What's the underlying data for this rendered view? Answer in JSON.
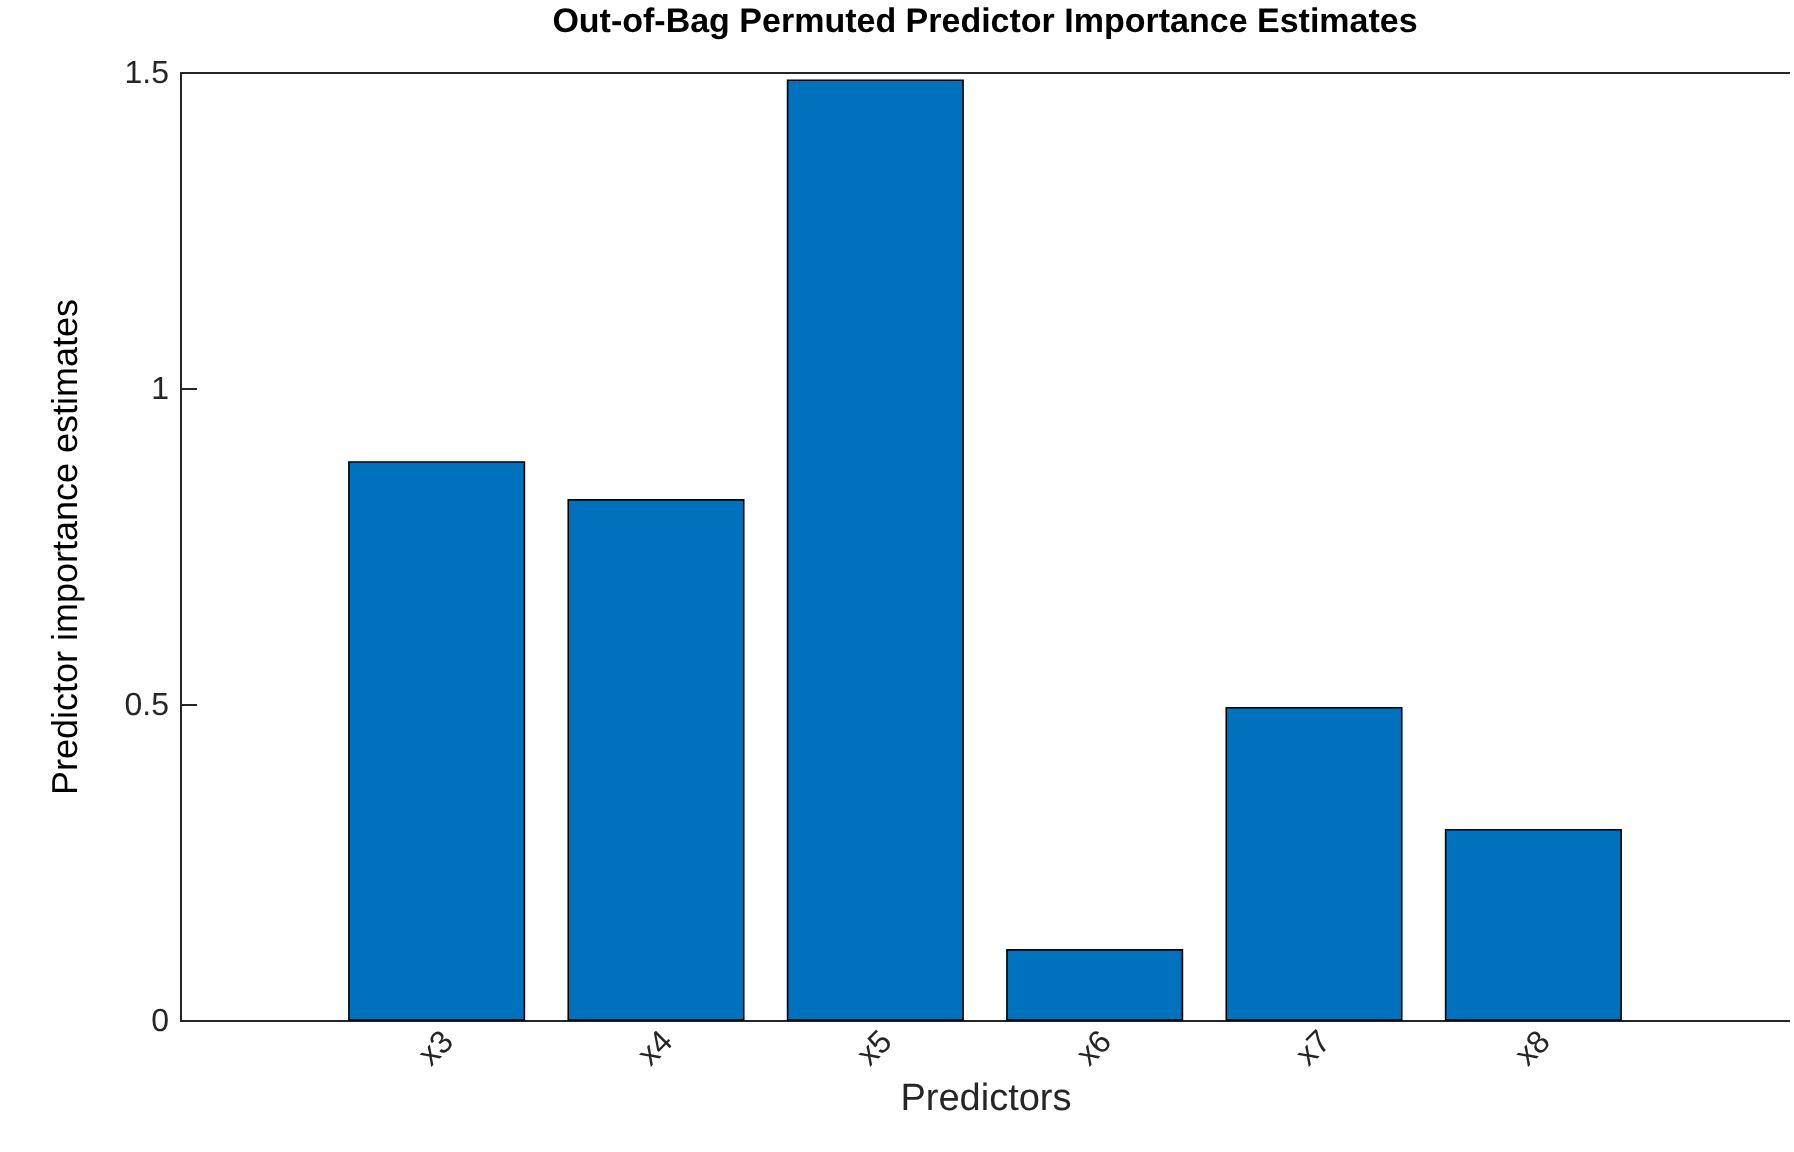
{
  "chart_data": {
    "type": "bar",
    "title": "Out-of-Bag Permuted Predictor Importance Estimates",
    "xlabel": "Predictors",
    "ylabel": "Predictor importance estimates",
    "categories": [
      "x3",
      "x4",
      "x5",
      "x6",
      "x7",
      "x8"
    ],
    "values": [
      0.883,
      0.823,
      1.487,
      0.111,
      0.494,
      0.301
    ],
    "color": "#0072bd",
    "ylim": [
      0,
      1.5
    ],
    "yticks": [
      0,
      0.5,
      1,
      1.5
    ],
    "grid": false
  }
}
